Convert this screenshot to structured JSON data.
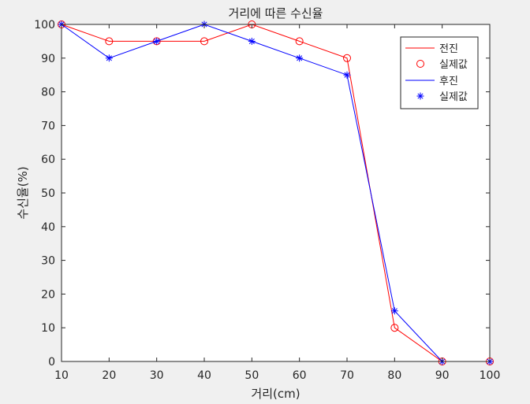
{
  "chart_data": {
    "type": "line",
    "title": "거리에 따른 수신율",
    "xlabel": "거리(cm)",
    "ylabel": "수신율(%)",
    "xlim": [
      10,
      100
    ],
    "ylim": [
      0,
      100
    ],
    "x_ticks": [
      10,
      20,
      30,
      40,
      50,
      60,
      70,
      80,
      90,
      100
    ],
    "y_ticks": [
      0,
      10,
      20,
      30,
      40,
      50,
      60,
      70,
      80,
      90,
      100
    ],
    "grid": false,
    "legend_position": "top-right",
    "x": [
      10,
      20,
      30,
      40,
      50,
      60,
      70,
      80,
      90,
      100
    ],
    "series": [
      {
        "name": "전진",
        "marker_label": "실제값",
        "color": "#ff0000",
        "marker": "circle",
        "values": [
          100,
          95,
          95,
          95,
          100,
          95,
          90,
          10,
          0,
          0
        ]
      },
      {
        "name": "후진",
        "marker_label": "실제값",
        "color": "#0000ff",
        "marker": "star",
        "values": [
          100,
          90,
          95,
          100,
          95,
          90,
          85,
          15,
          0,
          0
        ]
      }
    ]
  }
}
